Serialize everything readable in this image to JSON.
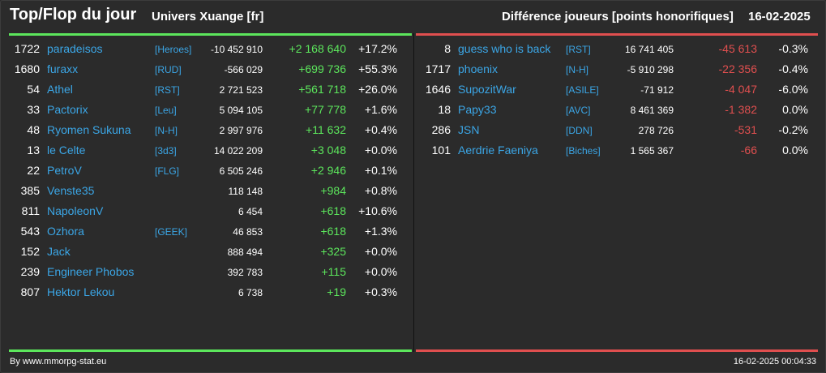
{
  "header": {
    "title": "Top/Flop du jour",
    "universe": "Univers Xuange [fr]",
    "metric": "Différence joueurs [points honorifiques]",
    "date": "16-02-2025"
  },
  "colors": {
    "background": "#2b2b2b",
    "text": "#ffffff",
    "link": "#3ba6e6",
    "positive": "#5ce65c",
    "negative": "#e04f4f",
    "top_bar": "#5ce65c",
    "flop_bar": "#e04f4f"
  },
  "top": [
    {
      "rank": "1722",
      "name": "paradeisos",
      "ally": "[Heroes]",
      "points": "-10 452 910",
      "diff": "+2 168 640",
      "pct": "+17.2%"
    },
    {
      "rank": "1680",
      "name": "furaxx",
      "ally": "[RUD]",
      "points": "-566 029",
      "diff": "+699 736",
      "pct": "+55.3%"
    },
    {
      "rank": "54",
      "name": "Athel",
      "ally": "[RST]",
      "points": "2 721 523",
      "diff": "+561 718",
      "pct": "+26.0%"
    },
    {
      "rank": "33",
      "name": "Pactorix",
      "ally": "[Leu]",
      "points": "5 094 105",
      "diff": "+77 778",
      "pct": "+1.6%"
    },
    {
      "rank": "48",
      "name": "Ryomen Sukuna",
      "ally": "[N-H]",
      "points": "2 997 976",
      "diff": "+11 632",
      "pct": "+0.4%"
    },
    {
      "rank": "13",
      "name": "le Celte",
      "ally": "[3d3]",
      "points": "14 022 209",
      "diff": "+3 048",
      "pct": "+0.0%"
    },
    {
      "rank": "22",
      "name": "PetroV",
      "ally": "[FLG]",
      "points": "6 505 246",
      "diff": "+2 946",
      "pct": "+0.1%"
    },
    {
      "rank": "385",
      "name": "Venste35",
      "ally": "",
      "points": "118 148",
      "diff": "+984",
      "pct": "+0.8%"
    },
    {
      "rank": "811",
      "name": "NapoleonV",
      "ally": "",
      "points": "6 454",
      "diff": "+618",
      "pct": "+10.6%"
    },
    {
      "rank": "543",
      "name": "Ozhora",
      "ally": "[GEEK]",
      "points": "46 853",
      "diff": "+618",
      "pct": "+1.3%"
    },
    {
      "rank": "152",
      "name": "Jack",
      "ally": "",
      "points": "888 494",
      "diff": "+325",
      "pct": "+0.0%"
    },
    {
      "rank": "239",
      "name": "Engineer Phobos",
      "ally": "",
      "points": "392 783",
      "diff": "+115",
      "pct": "+0.0%"
    },
    {
      "rank": "807",
      "name": "Hektor Lekou",
      "ally": "",
      "points": "6 738",
      "diff": "+19",
      "pct": "+0.3%"
    }
  ],
  "flop": [
    {
      "rank": "8",
      "name": "guess who is back",
      "ally": "[RST]",
      "points": "16 741 405",
      "diff": "-45 613",
      "pct": "-0.3%"
    },
    {
      "rank": "1717",
      "name": "phoenix",
      "ally": "[N-H]",
      "points": "-5 910 298",
      "diff": "-22 356",
      "pct": "-0.4%"
    },
    {
      "rank": "1646",
      "name": "SupozitWar",
      "ally": "[ASILE]",
      "points": "-71 912",
      "diff": "-4 047",
      "pct": "-6.0%"
    },
    {
      "rank": "18",
      "name": "Papy33",
      "ally": "[AVC]",
      "points": "8 461 369",
      "diff": "-1 382",
      "pct": "0.0%"
    },
    {
      "rank": "286",
      "name": "JSN",
      "ally": "[DDN]",
      "points": "278 726",
      "diff": "-531",
      "pct": "-0.2%"
    },
    {
      "rank": "101",
      "name": "Aerdrie Faeniya",
      "ally": "[Biches]",
      "points": "1 565 367",
      "diff": "-66",
      "pct": "0.0%"
    }
  ],
  "footer": {
    "credit": "By www.mmorpg-stat.eu",
    "timestamp": "16-02-2025 00:04:33"
  }
}
